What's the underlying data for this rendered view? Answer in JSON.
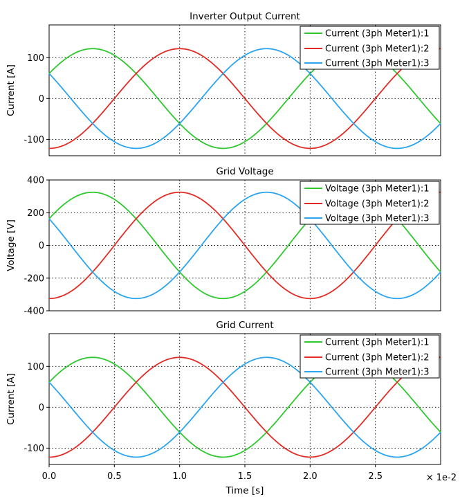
{
  "chart_data": [
    {
      "type": "line",
      "title": "Inverter Output Current",
      "ylabel": "Current [A]",
      "xlim": [
        0.0,
        3.0
      ],
      "ylim": [
        -140,
        180
      ],
      "yticks": [
        -100,
        0,
        100
      ],
      "ytick_labels": [
        "-100",
        "0",
        "100"
      ],
      "grid": true,
      "legend_position": "top-right",
      "series": [
        {
          "name": "Current (3ph Meter1):1",
          "color": "#2ec82e",
          "amplitude": 122,
          "phase_deg": 30,
          "freq_hz": 50
        },
        {
          "name": "Current (3ph Meter1):2",
          "color": "#e12b24",
          "amplitude": 122,
          "phase_deg": -90,
          "freq_hz": 50
        },
        {
          "name": "Current (3ph Meter1):3",
          "color": "#2aa4ef",
          "amplitude": 122,
          "phase_deg": 150,
          "freq_hz": 50
        }
      ]
    },
    {
      "type": "line",
      "title": "Grid Voltage",
      "ylabel": "Voltage [V]",
      "xlim": [
        0.0,
        3.0
      ],
      "ylim": [
        -400,
        400
      ],
      "yticks": [
        -400,
        -200,
        0,
        200,
        400
      ],
      "ytick_labels": [
        "-400",
        "-200",
        "0",
        "200",
        "400"
      ],
      "grid": true,
      "legend_position": "top-right",
      "series": [
        {
          "name": "Voltage (3ph Meter1):1",
          "color": "#2ec82e",
          "amplitude": 325,
          "phase_deg": 30,
          "freq_hz": 50
        },
        {
          "name": "Voltage (3ph Meter1):2",
          "color": "#e12b24",
          "amplitude": 325,
          "phase_deg": -90,
          "freq_hz": 50
        },
        {
          "name": "Voltage (3ph Meter1):3",
          "color": "#2aa4ef",
          "amplitude": 325,
          "phase_deg": 150,
          "freq_hz": 50
        }
      ]
    },
    {
      "type": "line",
      "title": "Grid Current",
      "ylabel": "Current [A]",
      "xlim": [
        0.0,
        3.0
      ],
      "ylim": [
        -140,
        180
      ],
      "yticks": [
        -100,
        0,
        100
      ],
      "ytick_labels": [
        "-100",
        "0",
        "100"
      ],
      "grid": true,
      "legend_position": "top-right",
      "series": [
        {
          "name": "Current (3ph Meter1):1",
          "color": "#2ec82e",
          "amplitude": 122,
          "phase_deg": 30,
          "freq_hz": 50
        },
        {
          "name": "Current (3ph Meter1):2",
          "color": "#e12b24",
          "amplitude": 122,
          "phase_deg": -90,
          "freq_hz": 50
        },
        {
          "name": "Current (3ph Meter1):3",
          "color": "#2aa4ef",
          "amplitude": 122,
          "phase_deg": 150,
          "freq_hz": 50
        }
      ]
    }
  ],
  "x_axis": {
    "label": "Time [s]",
    "ticks": [
      0.0,
      0.5,
      1.0,
      1.5,
      2.0,
      2.5
    ],
    "tick_labels": [
      "0.0",
      "0.5",
      "1.0",
      "1.5",
      "2.0",
      "2.5"
    ],
    "scale_label": "× 1e-2"
  }
}
